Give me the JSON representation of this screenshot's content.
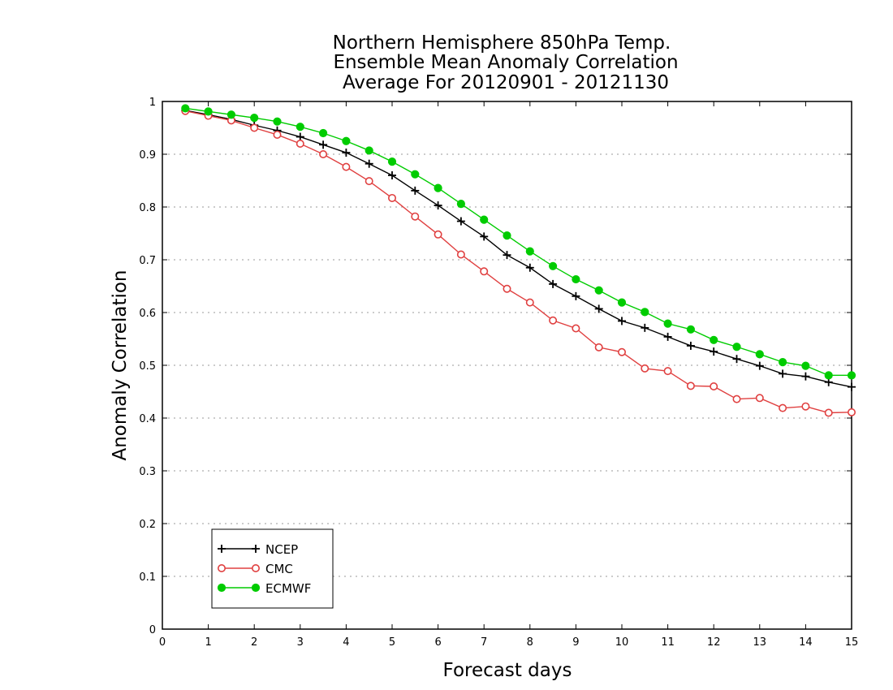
{
  "chart_data": {
    "type": "line",
    "title": [
      "Northern Hemisphere 850hPa Temp.",
      "Ensemble Mean Anomaly Correlation",
      "Average For 20120901 - 20121130"
    ],
    "xlabel": "Forecast days",
    "ylabel": "Anomaly Correlation",
    "xlim": [
      0,
      15
    ],
    "ylim": [
      0,
      1
    ],
    "xticks": [
      0,
      1,
      2,
      3,
      4,
      5,
      6,
      7,
      8,
      9,
      10,
      11,
      12,
      13,
      14,
      15
    ],
    "yticks": [
      0,
      0.1,
      0.2,
      0.3,
      0.4,
      0.5,
      0.6,
      0.7,
      0.8,
      0.9,
      1
    ],
    "grid": "horizontal-dotted",
    "legend_position": "bottom-left",
    "x": [
      0.5,
      1,
      1.5,
      2,
      2.5,
      3,
      3.5,
      4,
      4.5,
      5,
      5.5,
      6,
      6.5,
      7,
      7.5,
      8,
      8.5,
      9,
      9.5,
      10,
      10.5,
      11,
      11.5,
      12,
      12.5,
      13,
      13.5,
      14,
      14.5,
      15
    ],
    "series": [
      {
        "name": "NCEP",
        "color": "#000000",
        "marker": "plus",
        "values": [
          0.983,
          0.975,
          0.966,
          0.955,
          0.945,
          0.933,
          0.918,
          0.903,
          0.882,
          0.86,
          0.831,
          0.803,
          0.773,
          0.744,
          0.709,
          0.685,
          0.654,
          0.631,
          0.607,
          0.584,
          0.571,
          0.554,
          0.537,
          0.526,
          0.512,
          0.499,
          0.484,
          0.479,
          0.468,
          0.459
        ]
      },
      {
        "name": "CMC",
        "color": "#e04040",
        "marker": "open-circle",
        "values": [
          0.982,
          0.973,
          0.964,
          0.95,
          0.937,
          0.92,
          0.9,
          0.876,
          0.849,
          0.817,
          0.782,
          0.748,
          0.71,
          0.678,
          0.645,
          0.619,
          0.585,
          0.57,
          0.534,
          0.525,
          0.494,
          0.489,
          0.461,
          0.46,
          0.436,
          0.438,
          0.419,
          0.422,
          0.41,
          0.411
        ]
      },
      {
        "name": "ECMWF",
        "color": "#00cc00",
        "marker": "filled-circle",
        "values": [
          0.987,
          0.981,
          0.975,
          0.969,
          0.962,
          0.952,
          0.94,
          0.925,
          0.907,
          0.886,
          0.862,
          0.836,
          0.806,
          0.776,
          0.746,
          0.716,
          0.688,
          0.663,
          0.642,
          0.619,
          0.601,
          0.579,
          0.568,
          0.548,
          0.535,
          0.521,
          0.506,
          0.499,
          0.481,
          0.481
        ]
      }
    ]
  }
}
